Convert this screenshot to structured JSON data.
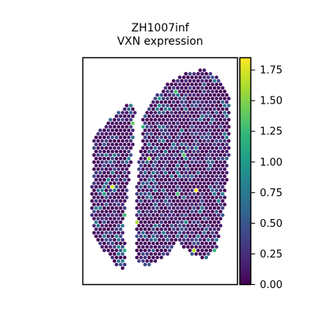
{
  "chart_data": {
    "type": "scatter",
    "title_lines": [
      "ZH1007inf",
      "VXN expression"
    ],
    "colorbar": {
      "colormap": "viridis",
      "range": [
        0.0,
        1.85
      ],
      "ticks": [
        "0.00",
        "0.25",
        "0.50",
        "0.75",
        "1.00",
        "1.25",
        "1.50",
        "1.75"
      ],
      "stops": [
        "#440154",
        "#482878",
        "#3e4989",
        "#31688e",
        "#26828e",
        "#1f9e89",
        "#35b779",
        "#6ece58",
        "#b5de2b",
        "#fde725"
      ]
    },
    "axes_visible": false,
    "grid": false,
    "highlight_values": [
      1.85,
      1.75,
      1.65,
      1.6,
      1.55,
      1.4,
      1.35,
      1.3,
      1.3,
      1.25,
      1.2,
      1.2,
      1.15,
      1.1,
      1.0,
      0.95,
      0.9,
      0.9,
      0.85,
      0.8,
      0.75,
      0.7,
      0.7,
      0.65,
      0.6
    ]
  }
}
